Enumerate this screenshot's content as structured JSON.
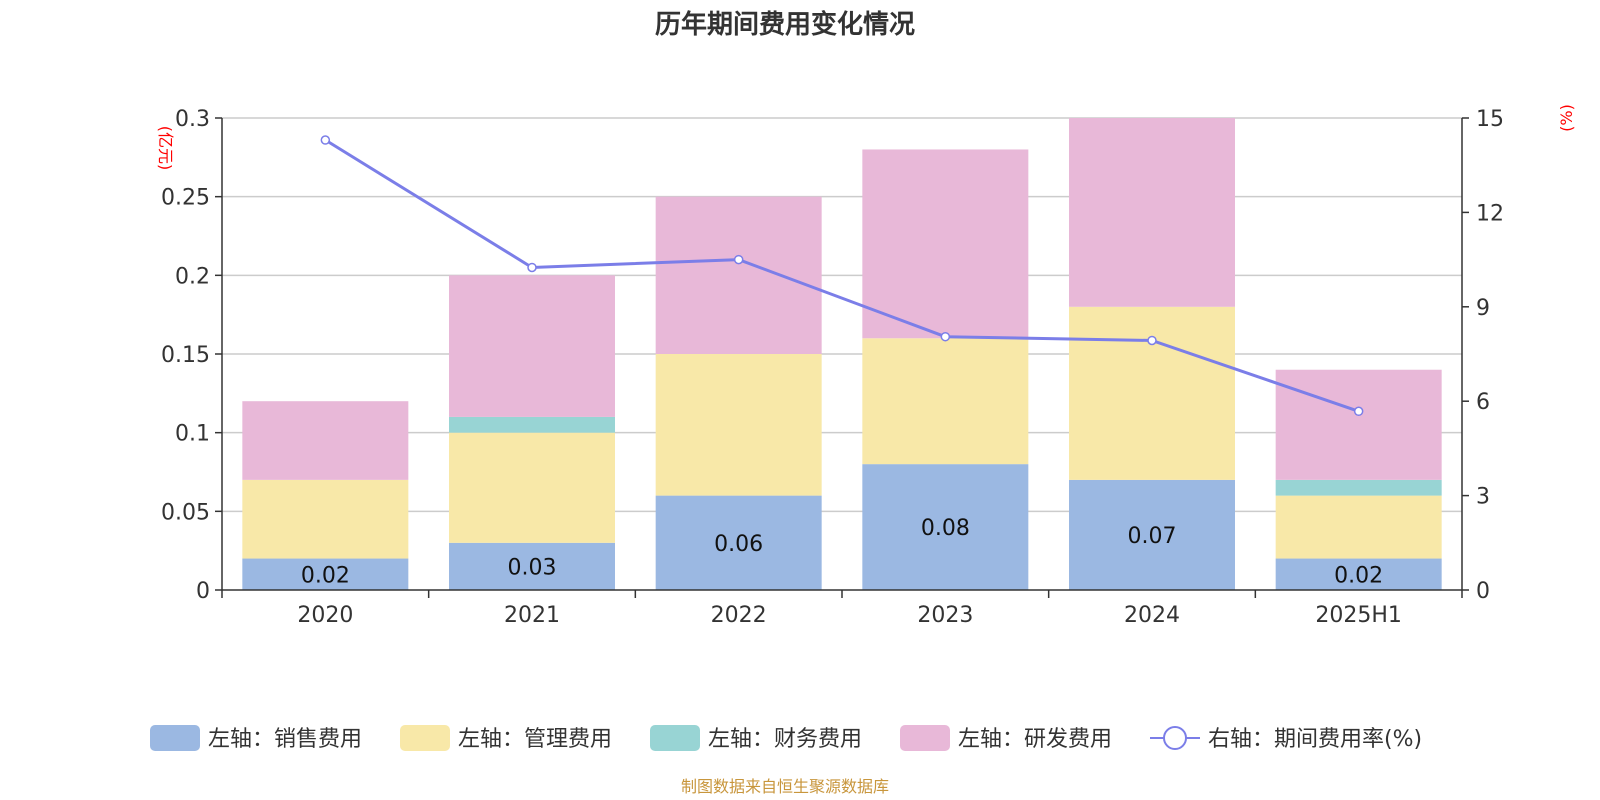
{
  "chart_data": {
    "type": "bar",
    "title": "历年期间费用变化情况",
    "categories": [
      "2020",
      "2021",
      "2022",
      "2023",
      "2024",
      "2025H1"
    ],
    "left_axis": {
      "unit": "(亿元)",
      "ylim": [
        0,
        0.3
      ],
      "ticks": [
        "0",
        "0.05",
        "0.1",
        "0.15",
        "0.2",
        "0.25",
        "0.3"
      ]
    },
    "right_axis": {
      "unit": "(%)",
      "ylim": [
        0,
        15
      ],
      "ticks": [
        "0",
        "3",
        "6",
        "9",
        "12",
        "15"
      ]
    },
    "series": [
      {
        "name": "左轴：销售费用",
        "type": "bar",
        "axis": "left",
        "color": "#9bb8e2",
        "values": [
          0.02,
          0.03,
          0.06,
          0.08,
          0.07,
          0.02
        ],
        "labels": [
          "0.02",
          "0.03",
          "0.06",
          "0.08",
          "0.07",
          "0.02"
        ]
      },
      {
        "name": "左轴：管理费用",
        "type": "bar",
        "axis": "left",
        "color": "#f8e8a8",
        "values": [
          0.05,
          0.07,
          0.09,
          0.08,
          0.11,
          0.04
        ]
      },
      {
        "name": "左轴：财务费用",
        "type": "bar",
        "axis": "left",
        "color": "#98d4d4",
        "values": [
          0,
          0.01,
          0,
          0,
          0,
          0.01
        ]
      },
      {
        "name": "左轴：研发费用",
        "type": "bar",
        "axis": "left",
        "color": "#e8b8d8",
        "values": [
          0.05,
          0.09,
          0.1,
          0.12,
          0.12,
          0.07
        ]
      },
      {
        "name": "右轴：期间费用率(%)",
        "type": "line",
        "axis": "right",
        "color": "#7b7ee8",
        "values": [
          14.3,
          10.25,
          10.5,
          8.05,
          7.93,
          5.68
        ]
      }
    ],
    "grid": true,
    "legend_position": "bottom"
  },
  "source_note": "制图数据来自恒生聚源数据库"
}
